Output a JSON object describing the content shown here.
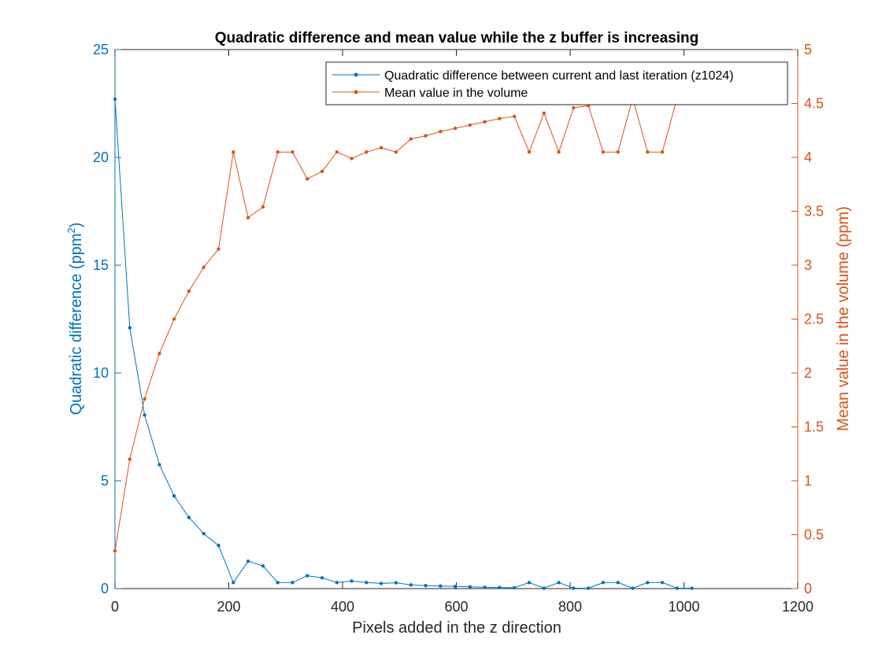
{
  "chart_data": {
    "type": "line",
    "title": "Quadratic difference and mean value while the z buffer is increasing",
    "xlabel": "Pixels added in the z direction",
    "ylabel_left_main": "Quadratic difference (ppm",
    "ylabel_left_sup": "2",
    "ylabel_left_close": ")",
    "ylabel_right": "Mean value in the volume (ppm)",
    "xlim": [
      0,
      1200
    ],
    "ylim_left": [
      0,
      25
    ],
    "ylim_right": [
      0,
      5
    ],
    "xticks": [
      0,
      200,
      400,
      600,
      800,
      1000,
      1200
    ],
    "yticks_left": [
      0,
      5,
      10,
      15,
      20,
      25
    ],
    "yticks_right": [
      "0",
      "0.5",
      "1",
      "1.5",
      "2",
      "2.5",
      "3",
      "3.5",
      "4",
      "4.5",
      "5"
    ],
    "grid": false,
    "legend_position": "top-right",
    "colors": {
      "left": "#0072BD",
      "right": "#D95319",
      "axis": "#262626"
    },
    "series": [
      {
        "name": "Quadratic difference between current and last iteration (z1024)",
        "axis": "left",
        "x": [
          0,
          26,
          52,
          78,
          104,
          130,
          156,
          182,
          208,
          234,
          260,
          286,
          312,
          338,
          364,
          390,
          416,
          442,
          468,
          494,
          520,
          546,
          572,
          598,
          624,
          650,
          676,
          702,
          728,
          754,
          780,
          806,
          832,
          858,
          884,
          910,
          936,
          962,
          988,
          1014
        ],
        "values": [
          22.7,
          12.1,
          8.05,
          5.75,
          4.3,
          3.3,
          2.55,
          2.0,
          0.28,
          1.27,
          1.05,
          0.28,
          0.28,
          0.6,
          0.5,
          0.28,
          0.35,
          0.28,
          0.24,
          0.27,
          0.17,
          0.14,
          0.12,
          0.1,
          0.08,
          0.06,
          0.05,
          0.04,
          0.28,
          0.02,
          0.28,
          0.02,
          0.02,
          0.28,
          0.28,
          0.02,
          0.28,
          0.28,
          0.02,
          0.02
        ]
      },
      {
        "name": "Mean value in the volume",
        "axis": "right",
        "x": [
          0,
          26,
          52,
          78,
          104,
          130,
          156,
          182,
          208,
          234,
          260,
          286,
          312,
          338,
          364,
          390,
          416,
          442,
          468,
          494,
          520,
          546,
          572,
          598,
          624,
          650,
          676,
          702,
          728,
          754,
          780,
          806,
          832,
          858,
          884,
          910,
          936,
          962,
          988
        ],
        "values": [
          0.35,
          1.2,
          1.76,
          2.18,
          2.5,
          2.76,
          2.98,
          3.15,
          4.05,
          3.44,
          3.54,
          4.05,
          4.05,
          3.8,
          3.87,
          4.05,
          3.99,
          4.05,
          4.09,
          4.05,
          4.17,
          4.2,
          4.24,
          4.27,
          4.3,
          4.33,
          4.36,
          4.38,
          4.05,
          4.41,
          4.05,
          4.46,
          4.48,
          4.05,
          4.05,
          4.55,
          4.05,
          4.05,
          4.55
        ]
      }
    ]
  }
}
